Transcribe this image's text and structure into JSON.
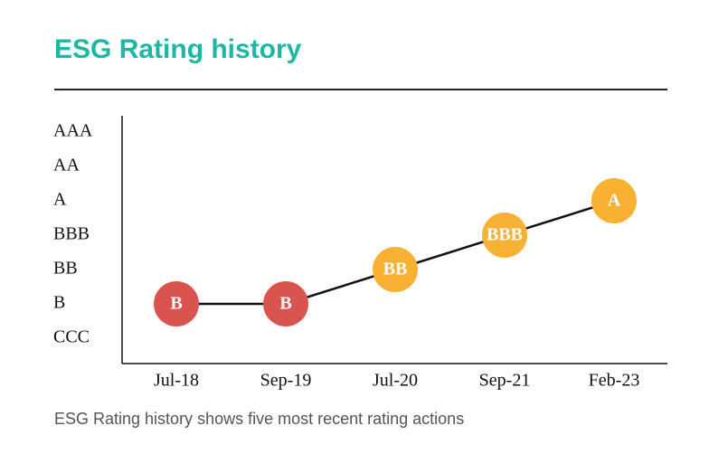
{
  "header": {
    "title": "ESG Rating history"
  },
  "caption": "ESG Rating history shows five most recent rating actions",
  "colors": {
    "title": "#1cb8a4",
    "rule": "#1c2b33",
    "low": "#d9534f",
    "mid": "#f8b133",
    "line": "#111111"
  },
  "chart_data": {
    "type": "line",
    "title": "ESG Rating history",
    "xlabel": "",
    "ylabel": "",
    "y_categories": [
      "CCC",
      "B",
      "BB",
      "BBB",
      "A",
      "AA",
      "AAA"
    ],
    "categories": [
      "Jul-18",
      "Sep-19",
      "Jul-20",
      "Sep-21",
      "Feb-23"
    ],
    "values": [
      "B",
      "B",
      "BB",
      "BBB",
      "A"
    ],
    "point_colors": [
      "#d9534f",
      "#d9534f",
      "#f8b133",
      "#f8b133",
      "#f8b133"
    ],
    "grid": false,
    "legend": "none"
  }
}
